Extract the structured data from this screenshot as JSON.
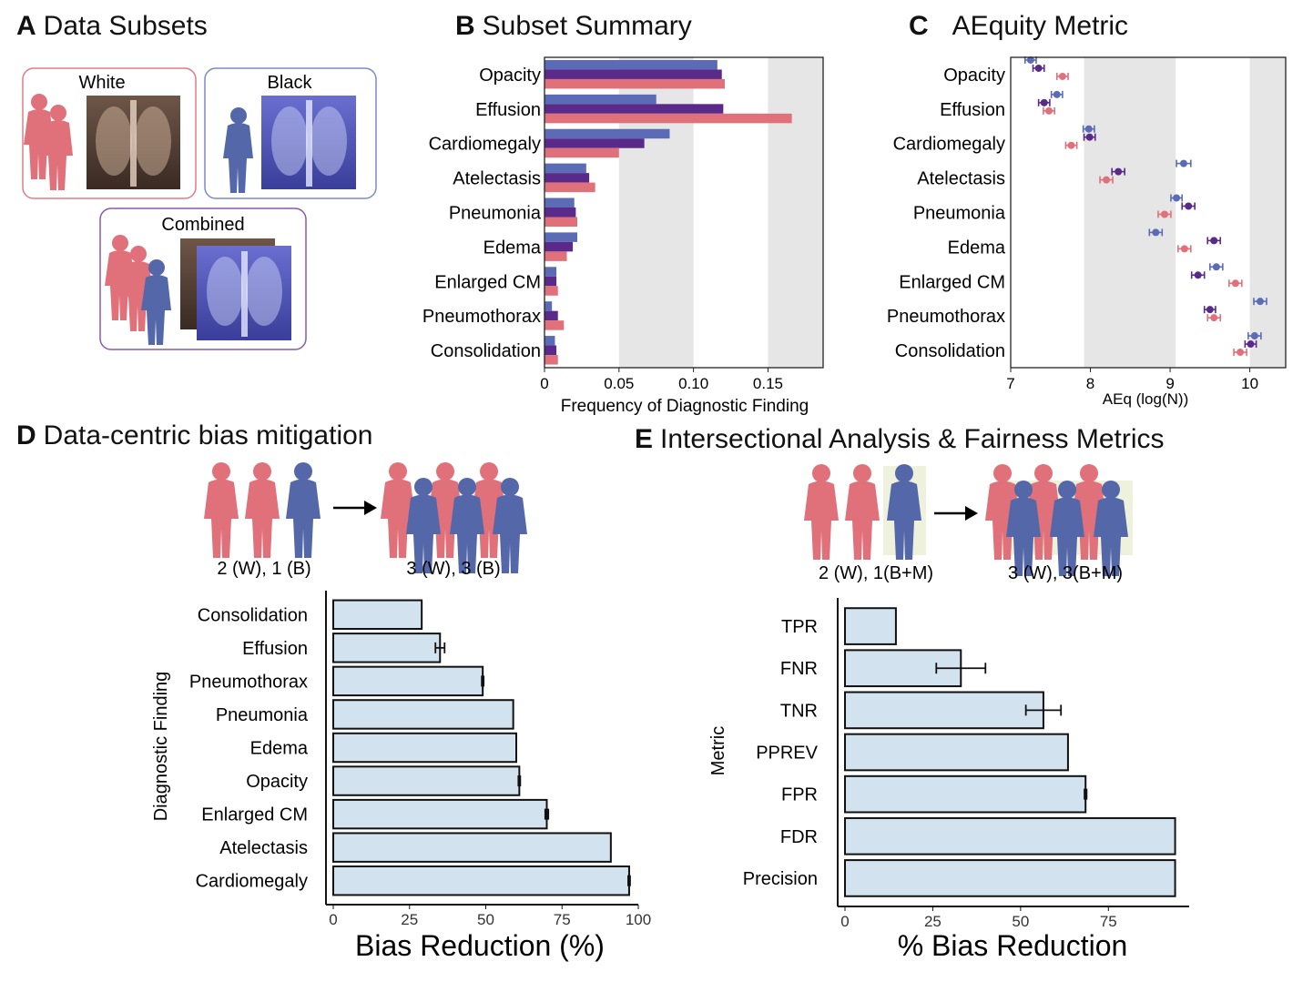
{
  "panels": {
    "A": {
      "letter": "A",
      "title": "Data Subsets",
      "white": "White",
      "black": "Black",
      "combined": "Combined"
    },
    "B": {
      "letter": "B",
      "title": "Subset Summary"
    },
    "C": {
      "letter": "C",
      "title": "AEquity Metric"
    },
    "D": {
      "letter": "D",
      "title": "Data-centric bias mitigation",
      "caption_before": "2 (W), 1 (B)",
      "caption_after": "3 (W), 3 (B)"
    },
    "E": {
      "letter": "E",
      "title": "Intersectional Analysis & Fairness Metrics",
      "caption_before": "2 (W), 1(B+M)",
      "caption_after": "3 (W), 3(B+M)"
    }
  },
  "colors": {
    "black_series": "#5b6bb5",
    "combined_series": "#5a2a8a",
    "white_series": "#e0707a",
    "bar_fill": "#d3e2ef",
    "shade": "#e6e6e6",
    "person_red": "#e0707a",
    "person_blue": "#5467a8",
    "highlight": "#eef1dc"
  },
  "chart_data": [
    {
      "panel": "B",
      "type": "bar",
      "orientation": "horizontal",
      "categories": [
        "Opacity",
        "Effusion",
        "Cardiomegaly",
        "Atelectasis",
        "Pneumonia",
        "Edema",
        "Enlarged CM",
        "Pneumothorax",
        "Consolidation"
      ],
      "series": [
        {
          "values": [
            0.116,
            0.075,
            0.084,
            0.028,
            0.02,
            0.022,
            0.008,
            0.005,
            0.007
          ]
        },
        {
          "values": [
            0.119,
            0.12,
            0.067,
            0.03,
            0.021,
            0.019,
            0.008,
            0.009,
            0.008
          ]
        },
        {
          "values": [
            0.121,
            0.166,
            0.05,
            0.034,
            0.022,
            0.015,
            0.009,
            0.013,
            0.009
          ]
        }
      ],
      "xlabel": "Frequency of Diagnostic Finding",
      "xticks": [
        "0",
        "0.05",
        "0.10",
        "0.15"
      ],
      "xlim": [
        0,
        0.187
      ],
      "shaded_bands": [
        [
          0.05,
          0.1
        ],
        [
          0.15,
          0.187
        ]
      ]
    },
    {
      "panel": "C",
      "type": "scatter",
      "categories": [
        "Opacity",
        "Effusion",
        "Cardiomegaly",
        "Atelectasis",
        "Pneumonia",
        "Edema",
        "Enlarged CM",
        "Pneumothorax",
        "Consolidation"
      ],
      "series": [
        {
          "values": [
            7.25,
            7.58,
            7.98,
            9.17,
            9.08,
            8.82,
            9.58,
            10.13,
            10.06
          ],
          "errors": [
            0.07,
            0.07,
            0.07,
            0.09,
            0.07,
            0.08,
            0.08,
            0.08,
            0.08
          ]
        },
        {
          "values": [
            7.35,
            7.42,
            7.99,
            8.35,
            9.23,
            9.55,
            9.35,
            9.5,
            10.01
          ],
          "errors": [
            0.07,
            0.07,
            0.07,
            0.08,
            0.08,
            0.08,
            0.08,
            0.07,
            0.07
          ]
        },
        {
          "values": [
            7.65,
            7.48,
            7.76,
            8.2,
            8.93,
            9.18,
            9.82,
            9.55,
            9.88
          ],
          "errors": [
            0.07,
            0.07,
            0.07,
            0.08,
            0.08,
            0.08,
            0.08,
            0.08,
            0.08
          ]
        }
      ],
      "xlabel": "AEq (log(N))",
      "xticks": [
        "7",
        "8",
        "9",
        "10"
      ],
      "xlim": [
        7,
        10.45
      ],
      "shaded_bands": [
        [
          7.92,
          9.07
        ],
        [
          10.0,
          10.45
        ]
      ]
    },
    {
      "panel": "D",
      "type": "bar",
      "orientation": "horizontal",
      "categories": [
        "Consolidation",
        "Effusion",
        "Pneumothorax",
        "Pneumonia",
        "Edema",
        "Opacity",
        "Enlarged CM",
        "Atelectasis",
        "Cardiomegaly"
      ],
      "values": [
        29,
        35,
        49,
        59,
        60,
        61,
        70,
        91,
        97
      ],
      "errors": [
        0,
        1.5,
        0.3,
        0,
        0,
        0.3,
        0.5,
        0,
        0.3
      ],
      "xlabel": "Bias Reduction (%)",
      "ylabel": "Diagnostic Finding",
      "xticks": [
        "0",
        "25",
        "50",
        "75",
        "100"
      ],
      "xlim": [
        0,
        100
      ]
    },
    {
      "panel": "E",
      "type": "bar",
      "orientation": "horizontal",
      "categories": [
        "TPR",
        "FNR",
        "TNR",
        "PPREV",
        "FPR",
        "FDR",
        "Precision"
      ],
      "values": [
        14.5,
        33,
        56.5,
        63.5,
        68.5,
        94,
        94
      ],
      "errors": [
        0,
        7,
        5,
        0,
        0.3,
        0,
        0
      ],
      "xlabel": "% Bias Reduction",
      "ylabel": "Metric",
      "xticks": [
        "0",
        "25",
        "50",
        "75"
      ],
      "xlim": [
        0,
        98
      ]
    }
  ]
}
